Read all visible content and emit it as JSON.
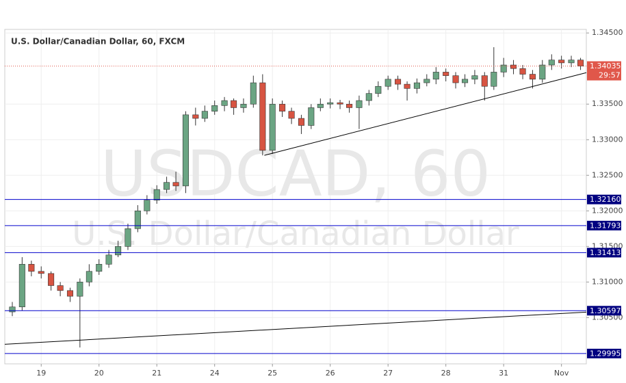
{
  "chart_data": {
    "type": "candlestick",
    "title": "U.S. Dollar/Canadian Dollar, 60, FXCM",
    "watermark": [
      "USDCAD, 60",
      "U.S. Dollar/Canadian Dollar"
    ],
    "xlim": [
      -0.63,
      9.43
    ],
    "ylim": [
      1.2985,
      1.3455
    ],
    "xticks": [
      {
        "value": 0,
        "label": "19"
      },
      {
        "value": 1,
        "label": "20"
      },
      {
        "value": 2,
        "label": "21"
      },
      {
        "value": 3,
        "label": "24"
      },
      {
        "value": 4,
        "label": "25"
      },
      {
        "value": 5,
        "label": "26"
      },
      {
        "value": 6,
        "label": "27"
      },
      {
        "value": 7,
        "label": "28"
      },
      {
        "value": 8,
        "label": "31"
      },
      {
        "value": 9,
        "label": "Nov"
      }
    ],
    "yticks": [
      {
        "value": 1.305,
        "label": "1.30500"
      },
      {
        "value": 1.31,
        "label": "1.31000"
      },
      {
        "value": 1.315,
        "label": "1.31500"
      },
      {
        "value": 1.32,
        "label": "1.32000"
      },
      {
        "value": 1.325,
        "label": "1.32500"
      },
      {
        "value": 1.33,
        "label": "1.33000"
      },
      {
        "value": 1.335,
        "label": "1.33500"
      },
      {
        "value": 1.345,
        "label": "1.34500"
      }
    ],
    "grid": true,
    "series": [
      {
        "up_color": "#6ba583",
        "down_color": "#d75442",
        "x": [
          -0.5,
          -0.33,
          -0.17,
          0,
          0.17,
          0.33,
          0.5,
          0.67,
          0.83,
          1,
          1.17,
          1.33,
          1.5,
          1.67,
          1.83,
          2,
          2.17,
          2.33,
          2.5,
          2.67,
          2.83,
          3,
          3.17,
          3.33,
          3.5,
          3.67,
          3.83,
          4,
          4.17,
          4.33,
          4.5,
          4.67,
          4.83,
          5,
          5.17,
          5.33,
          5.5,
          5.67,
          5.83,
          6,
          6.17,
          6.33,
          6.5,
          6.67,
          6.83,
          7,
          7.17,
          7.33,
          7.5,
          7.67,
          7.83,
          8,
          8.17,
          8.33,
          8.5,
          8.67,
          8.83,
          9,
          9.17,
          9.33
        ],
        "open": [
          1.3058,
          1.3065,
          1.3125,
          1.3115,
          1.3112,
          1.3095,
          1.3088,
          1.308,
          1.31,
          1.3115,
          1.3125,
          1.3138,
          1.315,
          1.3175,
          1.32,
          1.3215,
          1.323,
          1.324,
          1.3235,
          1.3335,
          1.333,
          1.334,
          1.3348,
          1.3355,
          1.3345,
          1.335,
          1.338,
          1.3285,
          1.335,
          1.334,
          1.333,
          1.332,
          1.3345,
          1.335,
          1.3352,
          1.335,
          1.3345,
          1.3355,
          1.3365,
          1.3375,
          1.3385,
          1.3378,
          1.3372,
          1.338,
          1.3385,
          1.3395,
          1.339,
          1.338,
          1.3385,
          1.339,
          1.3375,
          1.3395,
          1.3405,
          1.34,
          1.3392,
          1.3385,
          1.3405,
          1.3412,
          1.3408,
          1.3412
        ],
        "high": [
          1.3072,
          1.3135,
          1.313,
          1.3122,
          1.3115,
          1.31,
          1.3092,
          1.3105,
          1.3125,
          1.3132,
          1.3145,
          1.3158,
          1.3182,
          1.3208,
          1.3222,
          1.3236,
          1.3248,
          1.3255,
          1.334,
          1.3345,
          1.3348,
          1.3355,
          1.336,
          1.3358,
          1.3358,
          1.339,
          1.3392,
          1.3358,
          1.3355,
          1.3345,
          1.3335,
          1.335,
          1.3358,
          1.3358,
          1.3356,
          1.3355,
          1.3362,
          1.337,
          1.3382,
          1.339,
          1.339,
          1.3382,
          1.3386,
          1.3392,
          1.3402,
          1.34,
          1.3395,
          1.3392,
          1.3398,
          1.3395,
          1.343,
          1.3415,
          1.3412,
          1.3405,
          1.3398,
          1.3412,
          1.342,
          1.3418,
          1.3418,
          1.3415
        ],
        "low": [
          1.3052,
          1.306,
          1.3108,
          1.3105,
          1.3088,
          1.308,
          1.3072,
          1.3008,
          1.3094,
          1.311,
          1.312,
          1.3135,
          1.3145,
          1.317,
          1.3195,
          1.321,
          1.3225,
          1.3228,
          1.3225,
          1.332,
          1.3325,
          1.3335,
          1.334,
          1.3335,
          1.3338,
          1.3345,
          1.3278,
          1.328,
          1.3332,
          1.3322,
          1.3308,
          1.3315,
          1.334,
          1.3344,
          1.3343,
          1.3338,
          1.3315,
          1.3348,
          1.336,
          1.337,
          1.337,
          1.3355,
          1.3365,
          1.3375,
          1.3378,
          1.3382,
          1.3372,
          1.3374,
          1.3378,
          1.3355,
          1.337,
          1.3388,
          1.3392,
          1.3385,
          1.3372,
          1.338,
          1.3398,
          1.34,
          1.3402,
          1.3398
        ],
        "close": [
          1.3065,
          1.3125,
          1.3115,
          1.3112,
          1.3095,
          1.3088,
          1.308,
          1.31,
          1.3115,
          1.3125,
          1.3138,
          1.315,
          1.3175,
          1.32,
          1.3215,
          1.323,
          1.324,
          1.3235,
          1.3335,
          1.333,
          1.334,
          1.3348,
          1.3355,
          1.3345,
          1.335,
          1.338,
          1.3285,
          1.335,
          1.334,
          1.333,
          1.332,
          1.3345,
          1.335,
          1.3352,
          1.335,
          1.3345,
          1.3355,
          1.3365,
          1.3375,
          1.3385,
          1.3378,
          1.3372,
          1.338,
          1.3385,
          1.3395,
          1.339,
          1.338,
          1.3385,
          1.339,
          1.3375,
          1.3395,
          1.3405,
          1.34,
          1.3392,
          1.3385,
          1.3405,
          1.3412,
          1.3408,
          1.3412,
          1.34035
        ]
      }
    ],
    "levels": [
      {
        "value": 1.3216,
        "label": "1.32160"
      },
      {
        "value": 1.31793,
        "label": "1.31793"
      },
      {
        "value": 1.31413,
        "label": "1.31413"
      },
      {
        "value": 1.30597,
        "label": "1.30597"
      },
      {
        "value": 1.29995,
        "label": "1.29995"
      }
    ],
    "level_color": "#0000cc",
    "level_label_color": "#000080",
    "trendlines": [
      {
        "x": [
          3.86,
          9.43
        ],
        "y": [
          1.3278,
          1.33942
        ]
      },
      {
        "x": [
          -0.63,
          9.43
        ],
        "y": [
          1.30125,
          1.30577
        ]
      }
    ],
    "trendline_color": "#000000",
    "last_price": {
      "value": 1.34035,
      "countdown": "29:57"
    },
    "last_color": "#e0574a"
  }
}
